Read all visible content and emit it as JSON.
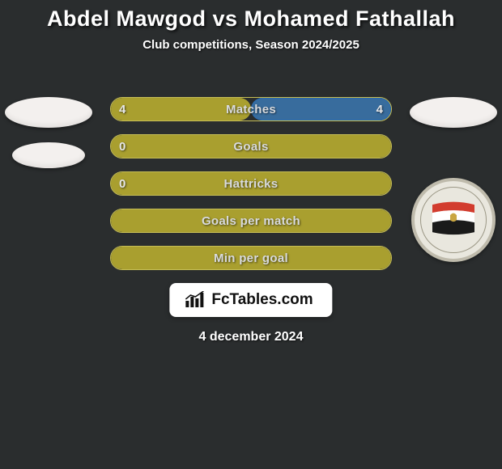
{
  "title": {
    "text": "Abdel Mawgod vs Mohamed Fathallah",
    "fontsize": 27,
    "color": "#ffffff"
  },
  "subtitle": {
    "text": "Club competitions, Season 2024/2025",
    "fontsize": 15,
    "color": "#ffffff"
  },
  "background_color": "#2a2d2e",
  "accent": {
    "olive_fill": "#a99f2f",
    "olive_border": "#c6be56",
    "blue_border": "#2f6bab",
    "blue_fill": "#386c9d"
  },
  "avatar": {
    "face_color": "#f3f0ee"
  },
  "team_badge": {
    "ring_bg": "#e9e7de",
    "ring_border": "#bfbbac",
    "flag_top": "#d23c2e",
    "flag_mid": "#ffffff",
    "flag_bot": "#1a1a1a",
    "emblem": "#c9a642"
  },
  "bars": [
    {
      "label": "Matches",
      "left": "4",
      "right": "4",
      "left_fill_pct": 50,
      "right_fill_pct": 50,
      "left_color": "olive",
      "right_color": "blue"
    },
    {
      "label": "Goals",
      "left": "0",
      "right": "",
      "left_fill_pct": 4,
      "right_fill_pct": 0,
      "left_color": "olive",
      "right_color": "olive"
    },
    {
      "label": "Hattricks",
      "left": "0",
      "right": "",
      "left_fill_pct": 4,
      "right_fill_pct": 0,
      "left_color": "olive",
      "right_color": "olive"
    },
    {
      "label": "Goals per match",
      "left": "",
      "right": "",
      "left_fill_pct": 0,
      "right_fill_pct": 0,
      "left_color": "olive",
      "right_color": "olive"
    },
    {
      "label": "Min per goal",
      "left": "",
      "right": "",
      "left_fill_pct": 0,
      "right_fill_pct": 0,
      "left_color": "olive",
      "right_color": "olive"
    }
  ],
  "watermark": {
    "text": "FcTables.com",
    "bg": "#ffffff",
    "fg": "#111111"
  },
  "date": {
    "text": "4 december 2024",
    "fontsize": 16,
    "color": "#ffffff"
  }
}
